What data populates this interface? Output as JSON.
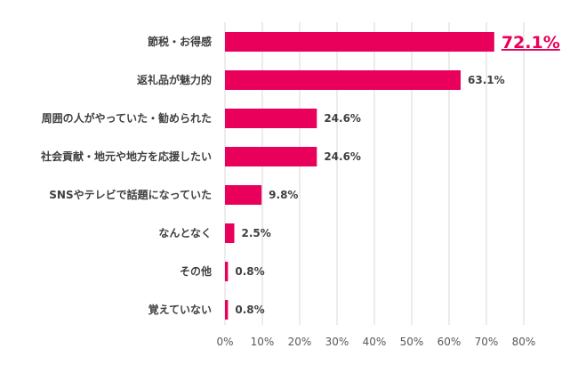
{
  "chart_data": {
    "type": "bar",
    "orientation": "horizontal",
    "categories": [
      "節税・お得感",
      "返礼品が魅力的",
      "周囲の人がやっていた・勧められた",
      "社会貢献・地元や地方を応援したい",
      "SNSやテレビで話題になっていた",
      "なんとなく",
      "その他",
      "覚えていない"
    ],
    "values": [
      72.1,
      63.1,
      24.6,
      24.6,
      9.8,
      2.5,
      0.8,
      0.8
    ],
    "value_labels": [
      "72.1%",
      "63.1%",
      "24.6%",
      "24.6%",
      "9.8%",
      "2.5%",
      "0.8%",
      "0.8%"
    ],
    "highlight_index": 0,
    "xlim": [
      0,
      80
    ],
    "xticks": [
      "0%",
      "10%",
      "20%",
      "30%",
      "40%",
      "50%",
      "60%",
      "70%",
      "80%"
    ],
    "grid": true,
    "legend": "none",
    "bar_color": "#e8005a",
    "highlight_color": "#e8005a"
  }
}
